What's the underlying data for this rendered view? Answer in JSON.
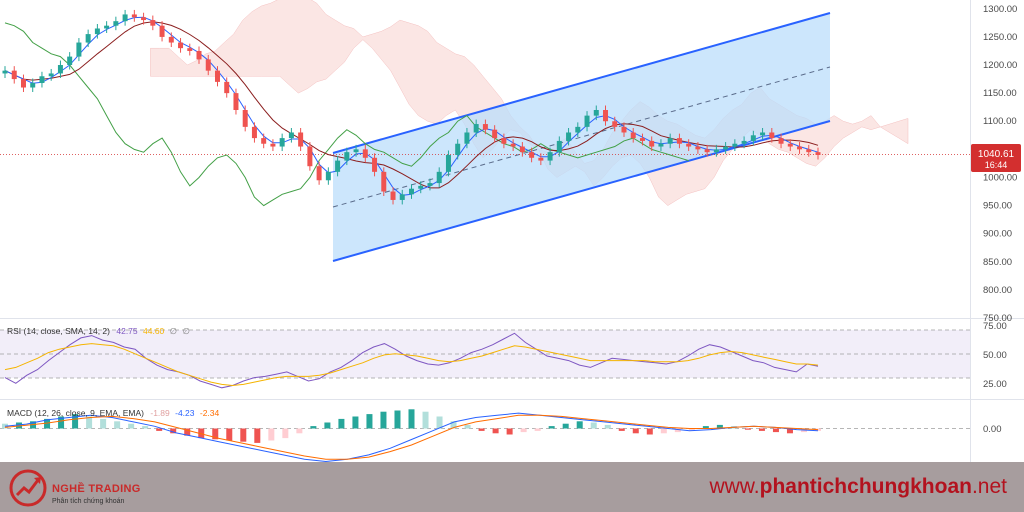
{
  "chart_data": [
    {
      "type": "candlestick",
      "title": "",
      "price_axis": {
        "ticks": [
          "1300.00",
          "1250.00",
          "1200.00",
          "1150.00",
          "1100.00",
          "1050.00",
          "1000.00",
          "950.00",
          "900.00",
          "850.00",
          "800.00",
          "750.00"
        ],
        "ylim": [
          750,
          1305
        ]
      },
      "last_price": {
        "value": "1040.61",
        "countdown": "16:44",
        "color": "#d32f2f"
      },
      "approx_series": {
        "close_path": [
          1190,
          1175,
          1160,
          1168,
          1180,
          1185,
          1200,
          1215,
          1240,
          1255,
          1265,
          1270,
          1278,
          1290,
          1285,
          1280,
          1270,
          1250,
          1240,
          1230,
          1225,
          1210,
          1190,
          1170,
          1150,
          1120,
          1090,
          1070,
          1060,
          1055,
          1070,
          1080,
          1055,
          1020,
          995,
          1010,
          1030,
          1045,
          1050,
          1035,
          1010,
          975,
          960,
          970,
          980,
          985,
          990,
          1010,
          1040,
          1060,
          1080,
          1095,
          1085,
          1070,
          1060,
          1055,
          1045,
          1035,
          1030,
          1045,
          1065,
          1080,
          1090,
          1110,
          1120,
          1100,
          1090,
          1080,
          1070,
          1065,
          1055,
          1060,
          1070,
          1060,
          1055,
          1050,
          1045,
          1050,
          1055,
          1060,
          1065,
          1075,
          1080,
          1070,
          1060,
          1055,
          1050,
          1045,
          1040
        ]
      },
      "channel": {
        "type": "parallel_channel",
        "color": "#2962ff",
        "fill": "#bbdefb"
      }
    },
    {
      "type": "line",
      "indicator": "RSI",
      "label_text": "RSI (14, close, SMA, 14, 2)",
      "values_text": [
        "42.75",
        "44.60",
        "∅",
        "∅"
      ],
      "value_colors": [
        "#7e57c2",
        "#f5b400",
        "#888888",
        "#888888"
      ],
      "levels": [
        "75.00",
        "50.00",
        "25.00"
      ],
      "ylim": [
        15,
        82
      ],
      "series": [
        {
          "name": "RSI",
          "color": "#7e57c2",
          "values": [
            33,
            28,
            35,
            40,
            48,
            55,
            62,
            68,
            70,
            66,
            64,
            60,
            58,
            50,
            44,
            40,
            38,
            35,
            30,
            27,
            24,
            26,
            30,
            33,
            34,
            36,
            38,
            34,
            30,
            32,
            38,
            42,
            48,
            55,
            60,
            63,
            58,
            52,
            48,
            45,
            44,
            46,
            50,
            55,
            58,
            62,
            67,
            72,
            64,
            58,
            52,
            50,
            48,
            44,
            42,
            46,
            50,
            49,
            48,
            47,
            46,
            45,
            47,
            52,
            58,
            62,
            60,
            56,
            52,
            48,
            46,
            42,
            40,
            38,
            45,
            43
          ]
        },
        {
          "name": "RSI-based MA",
          "color": "#f5b400",
          "values": [
            40,
            42,
            46,
            50,
            55,
            58,
            60,
            62,
            63,
            62,
            61,
            58,
            54,
            50,
            46,
            42,
            38,
            35,
            32,
            29,
            27,
            26,
            27,
            29,
            31,
            33,
            34,
            34,
            34,
            35,
            37,
            40,
            43,
            46,
            50,
            53,
            54,
            53,
            52,
            50,
            48,
            47,
            48,
            50,
            52,
            55,
            58,
            61,
            60,
            58,
            56,
            54,
            52,
            50,
            48,
            48,
            48,
            48,
            48,
            48,
            47,
            47,
            47,
            48,
            50,
            53,
            55,
            56,
            55,
            53,
            51,
            49,
            47,
            45,
            45,
            44
          ]
        }
      ]
    },
    {
      "type": "bar+line",
      "indicator": "MACD",
      "label_text": "MACD (12, 26, close, 9, EMA, EMA)",
      "values_text": [
        "-1.89",
        "-4.23",
        "-2.34"
      ],
      "value_colors": [
        "#e0a0a0",
        "#2962ff",
        "#ff6d00"
      ],
      "zero_label": "0.00",
      "histogram": [
        4,
        5,
        6,
        8,
        10,
        12,
        10,
        8,
        6,
        4,
        2,
        -2,
        -4,
        -6,
        -8,
        -9,
        -10,
        -11,
        -12,
        -10,
        -8,
        -4,
        2,
        5,
        8,
        10,
        12,
        14,
        15,
        16,
        14,
        10,
        6,
        3,
        -2,
        -4,
        -5,
        -3,
        -2,
        2,
        4,
        6,
        5,
        3,
        -2,
        -4,
        -5,
        -4,
        -3,
        -2,
        2,
        3,
        2,
        -1,
        -2,
        -3,
        -4,
        -3,
        -2
      ],
      "series": [
        {
          "name": "MACD",
          "color": "#2962ff",
          "values": [
            2,
            4,
            8,
            10,
            12,
            10,
            6,
            2,
            -4,
            -8,
            -12,
            -16,
            -20,
            -24,
            -28,
            -30,
            -28,
            -24,
            -18,
            -10,
            -2,
            6,
            10,
            12,
            14,
            12,
            10,
            8,
            6,
            4,
            2,
            0,
            -2,
            -1,
            1,
            2,
            1,
            -1,
            -2
          ]
        },
        {
          "name": "Signal",
          "color": "#ff6d00",
          "values": [
            1,
            3,
            5,
            8,
            10,
            11,
            9,
            6,
            1,
            -4,
            -9,
            -13,
            -17,
            -21,
            -25,
            -28,
            -28,
            -26,
            -21,
            -15,
            -7,
            1,
            6,
            9,
            12,
            12,
            11,
            9,
            7,
            5,
            3,
            1,
            0,
            0,
            1,
            2,
            1,
            0,
            -1
          ]
        }
      ]
    }
  ],
  "footer": {
    "brand_name": "NGHỀ TRADING",
    "brand_sub": "Phân tích chứng khoán",
    "site_prefix": "www.",
    "site_bold": "phantichchungkhoan",
    "site_suffix": ".net",
    "accent": "#c92a2a"
  }
}
